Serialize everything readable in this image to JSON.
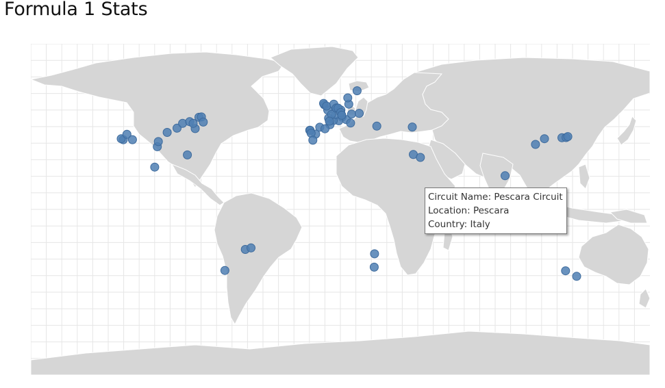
{
  "page": {
    "title": "Formula 1 Stats"
  },
  "map": {
    "colors": {
      "land": "#d6d6d6",
      "border": "#ffffff",
      "grid": "#e6e6e6",
      "marker": "#4f7fb3"
    },
    "circuits": [
      {
        "lat": 45.6,
        "lon": 9.3
      },
      {
        "lat": 44.3,
        "lon": 11.7
      },
      {
        "lat": 43.7,
        "lon": 7.4
      },
      {
        "lat": 43.8,
        "lon": 4.2
      },
      {
        "lat": 45.0,
        "lon": 1.5
      },
      {
        "lat": 46.9,
        "lon": 5.5
      },
      {
        "lat": 49.3,
        "lon": 1.0
      },
      {
        "lat": 47.0,
        "lon": 3.2
      },
      {
        "lat": 52.1,
        "lon": -1.0
      },
      {
        "lat": 52.8,
        "lon": -1.4
      },
      {
        "lat": 51.4,
        "lon": 0.3
      },
      {
        "lat": 52.4,
        "lon": 4.5
      },
      {
        "lat": 50.4,
        "lon": 6.0
      },
      {
        "lat": 50.3,
        "lon": 5.9
      },
      {
        "lat": 49.3,
        "lon": 8.6
      },
      {
        "lat": 50.3,
        "lon": 7.0
      },
      {
        "lat": 48.0,
        "lon": 8.5
      },
      {
        "lat": 47.2,
        "lon": 14.8
      },
      {
        "lat": 47.6,
        "lon": 19.2
      },
      {
        "lat": 46.6,
        "lon": 9.1
      },
      {
        "lat": 52.4,
        "lon": 13.2
      },
      {
        "lat": 55.7,
        "lon": 12.6
      },
      {
        "lat": 59.4,
        "lon": 18.0
      },
      {
        "lat": 41.6,
        "lon": 2.3
      },
      {
        "lat": 40.3,
        "lon": -3.6
      },
      {
        "lat": 39.5,
        "lon": -0.6
      },
      {
        "lat": 36.7,
        "lon": -6.0
      },
      {
        "lat": 38.7,
        "lon": -9.4
      },
      {
        "lat": 38.7,
        "lon": -9.2
      },
      {
        "lat": 37.2,
        "lon": -8.6
      },
      {
        "lat": 33.5,
        "lon": -7.6
      },
      {
        "lat": 42.5,
        "lon": 14.2
      },
      {
        "lat": 43.5,
        "lon": 2.0
      },
      {
        "lat": 40.9,
        "lon": 29.4
      },
      {
        "lat": 40.4,
        "lon": 49.9
      },
      {
        "lat": 26.0,
        "lon": 50.5
      },
      {
        "lat": 24.5,
        "lon": 54.6
      },
      {
        "lat": 14.9,
        "lon": 103.6
      },
      {
        "lat": 31.3,
        "lon": 121.2
      },
      {
        "lat": 34.8,
        "lon": 136.5
      },
      {
        "lat": 34.9,
        "lon": 138.9
      },
      {
        "lat": 35.4,
        "lon": 139.9
      },
      {
        "lat": 34.3,
        "lon": 126.4
      },
      {
        "lat": 1.3,
        "lon": 103.9
      },
      {
        "lat": 2.8,
        "lon": 101.7
      },
      {
        "lat": -34.9,
        "lon": 138.6
      },
      {
        "lat": -37.8,
        "lon": 145.0
      },
      {
        "lat": -26.0,
        "lon": 28.1
      },
      {
        "lat": -33.0,
        "lon": 27.9
      },
      {
        "lat": -23.7,
        "lon": -46.7
      },
      {
        "lat": -22.9,
        "lon": -43.4
      },
      {
        "lat": -34.7,
        "lon": -58.5
      },
      {
        "lat": 19.4,
        "lon": -99.1
      },
      {
        "lat": 30.1,
        "lon": -97.6
      },
      {
        "lat": 32.8,
        "lon": -97.0
      },
      {
        "lat": 25.8,
        "lon": -80.2
      },
      {
        "lat": 33.8,
        "lon": -117.3
      },
      {
        "lat": 34.3,
        "lon": -118.5
      },
      {
        "lat": 36.6,
        "lon": -115.2
      },
      {
        "lat": 33.8,
        "lon": -112.0
      },
      {
        "lat": 39.8,
        "lon": -86.2
      },
      {
        "lat": 42.3,
        "lon": -83.0
      },
      {
        "lat": 43.2,
        "lon": -78.9
      },
      {
        "lat": 45.5,
        "lon": -73.5
      },
      {
        "lat": 45.7,
        "lon": -72.1
      },
      {
        "lat": 43.0,
        "lon": -71.0
      },
      {
        "lat": 39.6,
        "lon": -75.7
      },
      {
        "lat": 37.6,
        "lon": -91.9
      },
      {
        "lat": 42.3,
        "lon": -76.9
      }
    ]
  },
  "tooltip": {
    "line1": "Circuit Name: Pescara Circuit",
    "line2": "Location: Pescara",
    "line3": "Country: Italy"
  }
}
